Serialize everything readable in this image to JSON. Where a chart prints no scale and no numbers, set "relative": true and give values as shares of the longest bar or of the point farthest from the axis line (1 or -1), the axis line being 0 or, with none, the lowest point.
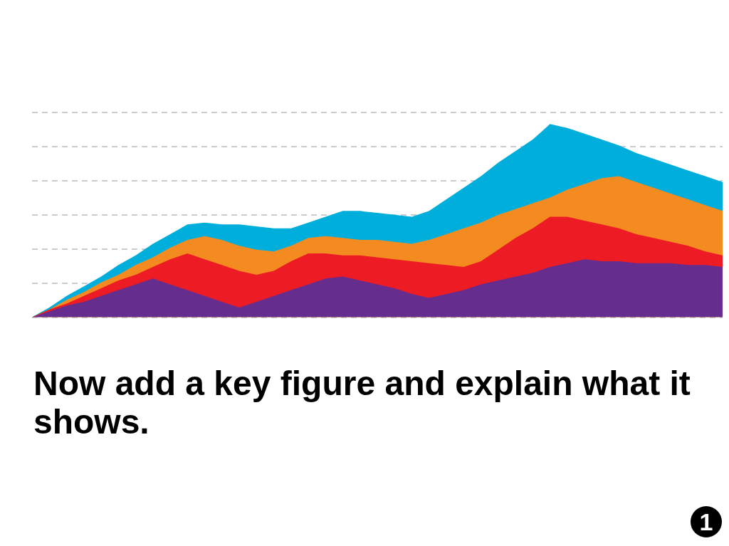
{
  "chart_data": {
    "type": "area",
    "title": "Now add a key figure and explain what it shows.",
    "relative": true,
    "grid": "y",
    "line_style": "dashed",
    "legend": false,
    "annotations": [
      "1"
    ],
    "categories": [
      null,
      null,
      null,
      null,
      null,
      null,
      null,
      null,
      null,
      null,
      null,
      null,
      null,
      null,
      null,
      null,
      null,
      null,
      null,
      null,
      null,
      null,
      null,
      null,
      null,
      null,
      null,
      null,
      null,
      null,
      null,
      null,
      null,
      null,
      null,
      null,
      null,
      null,
      null,
      null,
      null
    ],
    "series": [
      {
        "color": "#00aedb",
        "values": [
          0,
          0.05,
          0.11,
          0.16,
          0.21,
          0.27,
          0.32,
          0.38,
          0.43,
          0.48,
          0.49,
          0.48,
          0.48,
          0.47,
          0.46,
          0.46,
          0.49,
          0.52,
          0.55,
          0.55,
          0.54,
          0.53,
          0.52,
          0.55,
          0.61,
          0.67,
          0.73,
          0.8,
          0.86,
          0.92,
          1,
          0.98,
          0.95,
          0.92,
          0.89,
          0.85,
          0.82,
          0.79,
          0.76,
          0.73,
          0.7
        ]
      },
      {
        "color": "#f48b20",
        "values": [
          0,
          0.04,
          0.09,
          0.13,
          0.18,
          0.22,
          0.27,
          0.31,
          0.36,
          0.4,
          0.42,
          0.4,
          0.37,
          0.35,
          0.34,
          0.37,
          0.41,
          0.42,
          0.41,
          0.4,
          0.4,
          0.39,
          0.38,
          0.4,
          0.43,
          0.46,
          0.49,
          0.53,
          0.56,
          0.59,
          0.62,
          0.66,
          0.69,
          0.72,
          0.73,
          0.7,
          0.67,
          0.64,
          0.61,
          0.58,
          0.55
        ]
      },
      {
        "color": "#ed1c24",
        "values": [
          0,
          0.04,
          0.07,
          0.11,
          0.15,
          0.19,
          0.22,
          0.26,
          0.3,
          0.33,
          0.3,
          0.27,
          0.24,
          0.22,
          0.24,
          0.29,
          0.33,
          0.33,
          0.32,
          0.32,
          0.31,
          0.3,
          0.29,
          0.28,
          0.27,
          0.26,
          0.29,
          0.35,
          0.41,
          0.46,
          0.52,
          0.52,
          0.5,
          0.48,
          0.46,
          0.43,
          0.41,
          0.39,
          0.37,
          0.34,
          0.32
        ]
      },
      {
        "color": "#652d8e",
        "values": [
          0,
          0.03,
          0.06,
          0.08,
          0.11,
          0.14,
          0.17,
          0.2,
          0.17,
          0.14,
          0.11,
          0.08,
          0.05,
          0.08,
          0.11,
          0.14,
          0.17,
          0.2,
          0.21,
          0.19,
          0.17,
          0.15,
          0.12,
          0.1,
          0.12,
          0.14,
          0.17,
          0.19,
          0.21,
          0.23,
          0.26,
          0.28,
          0.3,
          0.29,
          0.29,
          0.28,
          0.28,
          0.28,
          0.27,
          0.27,
          0.26
        ]
      }
    ]
  }
}
